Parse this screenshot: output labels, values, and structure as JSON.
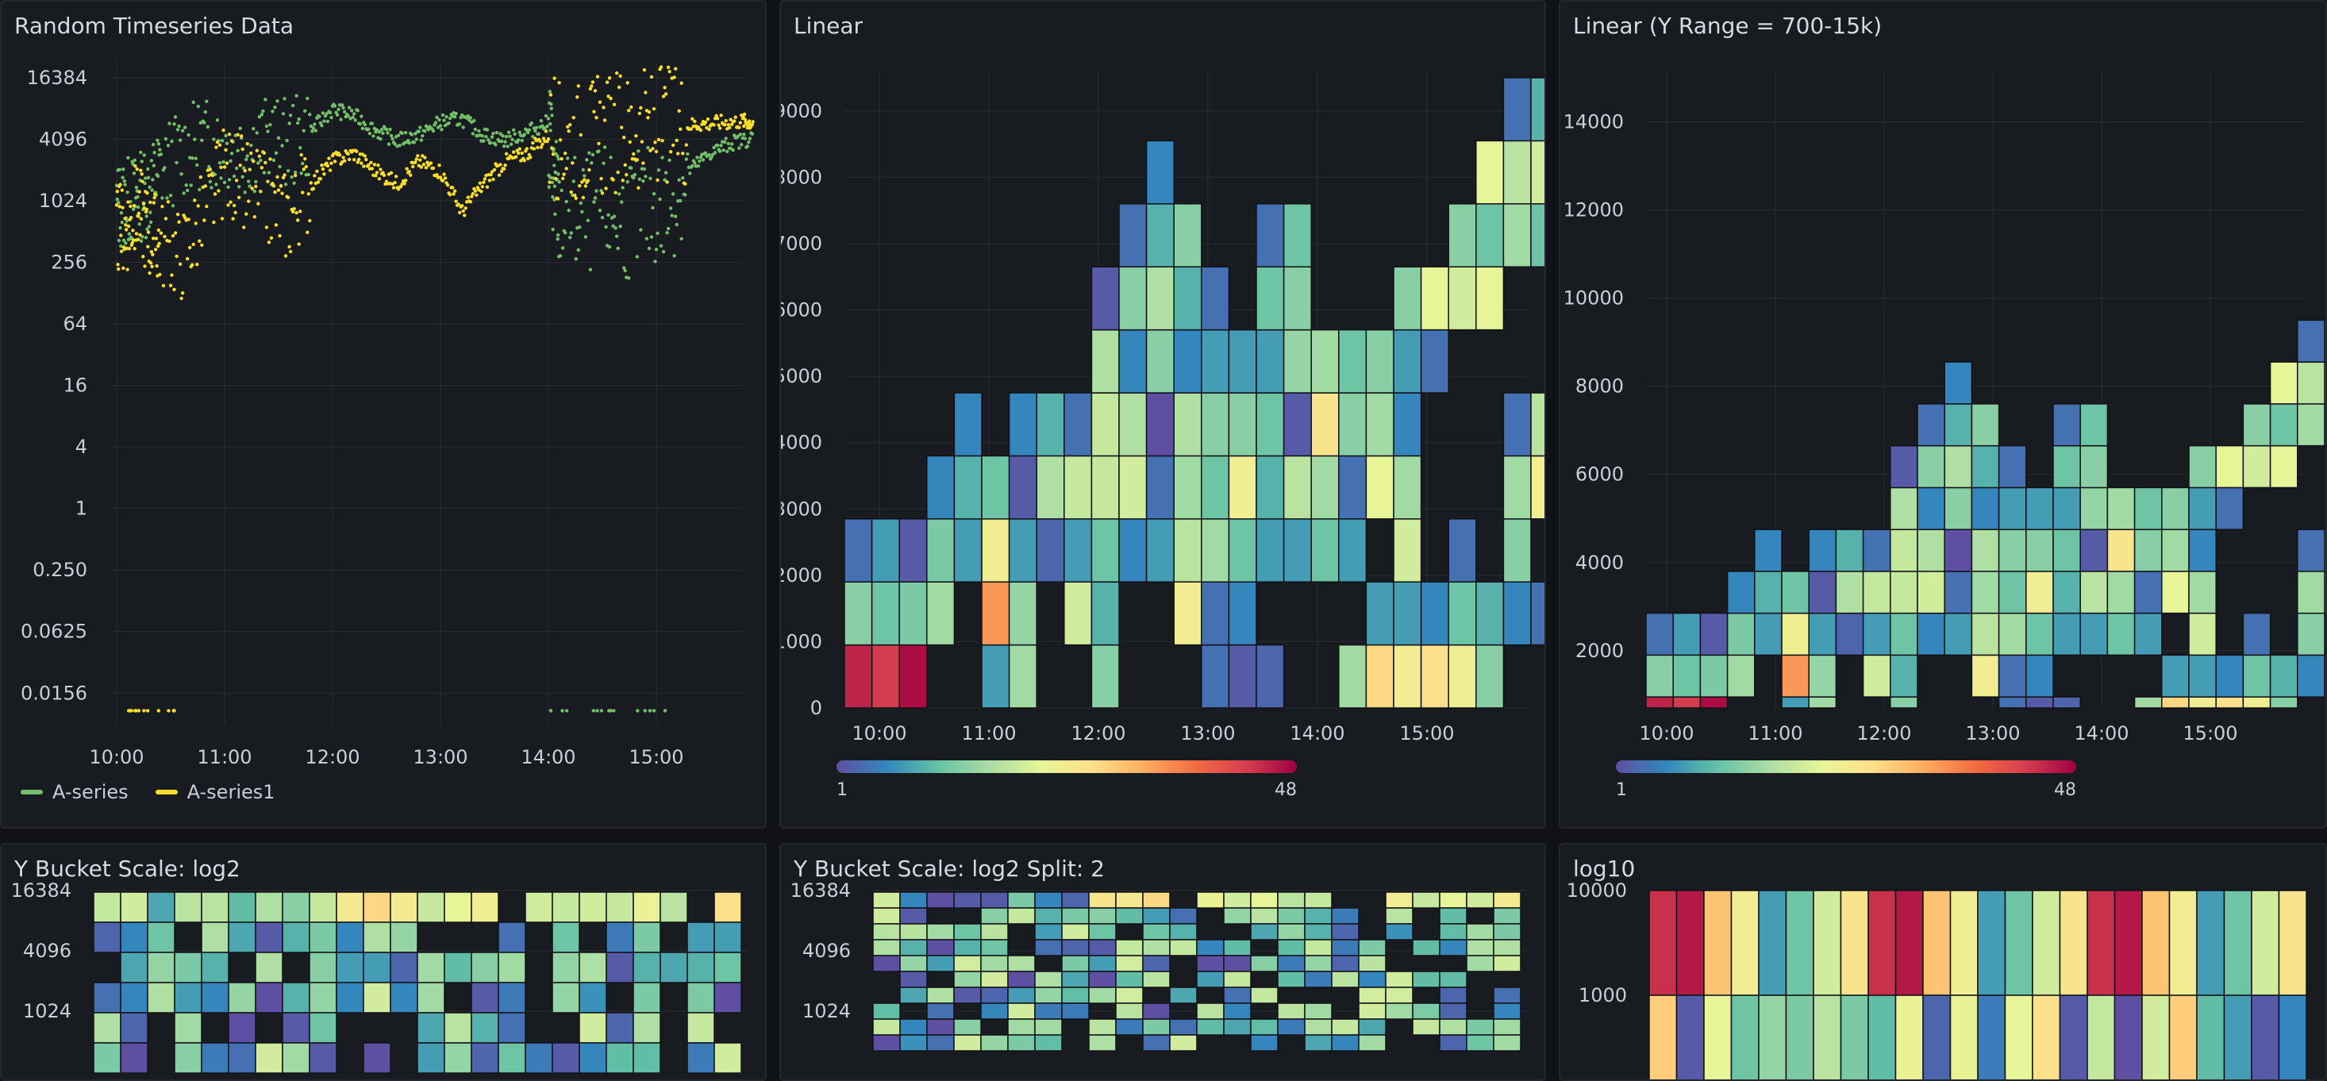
{
  "colors": {
    "seriesA": "#73bf69",
    "seriesA1": "#fade2a",
    "grid": "#2a2d33",
    "cellBorder": "#111217"
  },
  "panels": {
    "p1": {
      "title": "Random Timeseries Data"
    },
    "p2": {
      "title": "Linear"
    },
    "p3": {
      "title": "Linear (Y Range = 700-15k)"
    },
    "p4": {
      "title": "Y Bucket Scale: log2"
    },
    "p5": {
      "title": "Y Bucket Scale: log2 Split: 2"
    },
    "p6": {
      "title": "log10"
    }
  },
  "legend": {
    "items": [
      {
        "name": "A-series",
        "color": "#73bf69"
      },
      {
        "name": "A-series1",
        "color": "#fade2a"
      }
    ]
  },
  "color_scale": {
    "min": "1",
    "max": "48"
  },
  "chart_data": [
    {
      "type": "scatter",
      "title": "Random Timeseries Data",
      "y_scale": "log2",
      "ylim": [
        0.0078125,
        16384
      ],
      "x_ticks": [
        "10:00",
        "11:00",
        "12:00",
        "13:00",
        "14:00",
        "15:00"
      ],
      "y_ticks": [
        "16384",
        "4096",
        "1024",
        "256",
        "64",
        "16",
        "4",
        "1",
        "0.250",
        "0.0625",
        "0.0156"
      ],
      "series": [
        {
          "name": "A-series",
          "color": "#73bf69",
          "x": [
            0,
            0.1,
            0.2,
            0.3,
            0.4,
            0.6,
            0.8,
            1,
            1.2,
            1.4,
            1.6,
            1.8,
            2,
            2.2,
            2.4,
            2.6,
            2.8,
            3,
            3.2,
            3.4,
            3.6,
            3.8,
            4.0,
            4.05,
            4.1,
            4.3,
            4.5,
            4.7,
            4.9,
            5.1,
            5.3,
            5.5,
            5.7,
            5.9
          ],
          "y": [
            900,
            1000,
            1100,
            1300,
            2000,
            3000,
            3800,
            3500,
            3200,
            3900,
            3600,
            5000,
            8000,
            7000,
            5000,
            4000,
            4500,
            6000,
            6500,
            4500,
            4000,
            4800,
            6000,
            1500,
            800,
            700,
            900,
            650,
            900,
            900,
            2000,
            3000,
            3800,
            4200
          ]
        },
        {
          "name": "A-series1",
          "color": "#fade2a",
          "x": [
            0,
            0.1,
            0.2,
            0.3,
            0.4,
            0.6,
            0.8,
            1,
            1.2,
            1.4,
            1.6,
            1.8,
            2,
            2.2,
            2.4,
            2.6,
            2.8,
            3,
            3.2,
            3.4,
            3.6,
            3.8,
            4.0,
            4.2,
            4.4,
            4.6,
            4.8,
            5.0,
            5.2,
            5.4,
            5.6,
            5.8,
            5.9
          ],
          "y": [
            500,
            600,
            900,
            500,
            400,
            300,
            700,
            2000,
            1500,
            1000,
            700,
            1500,
            2500,
            3000,
            2000,
            1500,
            2500,
            2000,
            800,
            1500,
            2500,
            3000,
            4500,
            4000,
            4200,
            4500,
            5000,
            5200,
            5500,
            5800,
            6000,
            6200,
            6000
          ]
        }
      ]
    },
    {
      "type": "heatmap",
      "title": "Linear",
      "ylim": [
        0,
        9500
      ],
      "x_ticks": [
        "10:00",
        "11:00",
        "12:00",
        "13:00",
        "14:00",
        "15:00"
      ],
      "y_ticks": [
        "0",
        "1000",
        "2000",
        "3000",
        "4000",
        "5000",
        "6000",
        "7000",
        "8000",
        "9000"
      ],
      "bucket_size": 950,
      "columns": [
        [
          45,
          14,
          4,
          0,
          0,
          0,
          0,
          0,
          0,
          0
        ],
        [
          43,
          12,
          8,
          0,
          0,
          0,
          0,
          0,
          0,
          0
        ],
        [
          47,
          13,
          2,
          0,
          0,
          0,
          0,
          0,
          0,
          0
        ],
        [
          0,
          16,
          13,
          6,
          0,
          0,
          0,
          0,
          0,
          0
        ],
        [
          0,
          0,
          8,
          10,
          6,
          0,
          0,
          0,
          0,
          0
        ],
        [
          8,
          34,
          24,
          12,
          0,
          0,
          0,
          0,
          0,
          0
        ],
        [
          16,
          15,
          8,
          2,
          6,
          0,
          0,
          0,
          0,
          0
        ],
        [
          0,
          0,
          3,
          17,
          10,
          0,
          0,
          0,
          0,
          0
        ],
        [
          0,
          20,
          8,
          19,
          4,
          0,
          0,
          0,
          0,
          0
        ],
        [
          14,
          10,
          12,
          19,
          19,
          17,
          2,
          0,
          0,
          0
        ],
        [
          0,
          0,
          6,
          20,
          17,
          6,
          14,
          4,
          0,
          0
        ],
        [
          0,
          0,
          8,
          4,
          1,
          14,
          17,
          10,
          6,
          0
        ],
        [
          0,
          24,
          18,
          16,
          17,
          6,
          10,
          14,
          0,
          0
        ],
        [
          4,
          4,
          16,
          12,
          14,
          8,
          4,
          0,
          0,
          0
        ],
        [
          2,
          6,
          12,
          24,
          14,
          8,
          0,
          0,
          0,
          0
        ],
        [
          3,
          0,
          8,
          10,
          12,
          8,
          12,
          4,
          0,
          0
        ],
        [
          0,
          0,
          8,
          18,
          2,
          15,
          14,
          12,
          0,
          0
        ],
        [
          0,
          0,
          12,
          16,
          26,
          16,
          0,
          0,
          0,
          0
        ],
        [
          16,
          0,
          8,
          4,
          14,
          12,
          0,
          0,
          0,
          0
        ],
        [
          28,
          8,
          0,
          22,
          16,
          14,
          0,
          0,
          0,
          0
        ],
        [
          24,
          8,
          20,
          16,
          6,
          8,
          14,
          0,
          0,
          0
        ],
        [
          27,
          6,
          0,
          0,
          0,
          4,
          22,
          0,
          0,
          0
        ],
        [
          24,
          12,
          4,
          0,
          0,
          0,
          20,
          14,
          0,
          0
        ],
        [
          14,
          10,
          0,
          0,
          0,
          0,
          22,
          12,
          22,
          0
        ],
        [
          0,
          6,
          14,
          16,
          4,
          0,
          0,
          16,
          18,
          4
        ],
        [
          0,
          4,
          0,
          24,
          18,
          0,
          0,
          12,
          20,
          10
        ],
        [
          0,
          0,
          0,
          8,
          2,
          0,
          0,
          3,
          12,
          0
        ]
      ]
    },
    {
      "type": "heatmap",
      "title": "Linear (Y Range = 700-15k)",
      "ylim": [
        700,
        15000
      ],
      "x_ticks": [
        "10:00",
        "11:00",
        "12:00",
        "13:00",
        "14:00",
        "15:00"
      ],
      "y_ticks": [
        "2000",
        "4000",
        "6000",
        "8000",
        "10000",
        "12000",
        "14000"
      ],
      "bucket_size": 950
    },
    {
      "type": "heatmap",
      "title": "Y Bucket Scale: log2",
      "y_scale": "log2",
      "y_ticks": [
        "16384",
        "4096",
        "1024"
      ]
    },
    {
      "type": "heatmap",
      "title": "Y Bucket Scale: log2 Split: 2",
      "y_scale": "log2",
      "y_ticks": [
        "16384",
        "4096",
        "1024"
      ]
    },
    {
      "type": "heatmap",
      "title": "log10",
      "y_scale": "log10",
      "y_ticks": [
        "10000",
        "1000"
      ]
    }
  ]
}
